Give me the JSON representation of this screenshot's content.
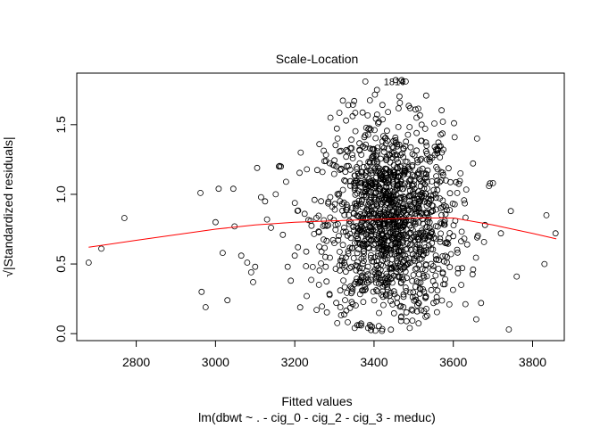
{
  "chart_data": {
    "type": "scatter",
    "title": "Scale-Location",
    "xlabel": "Fitted values",
    "subtitle": "lm(dbwt ~ . - cig_0 - cig_2 - cig_3 - meduc)",
    "ylabel": "√|Standardized residuals|",
    "xlim": [
      2650,
      3880
    ],
    "ylim": [
      -0.05,
      1.87
    ],
    "x_ticks": [
      2800,
      3000,
      3200,
      3400,
      3600,
      3800
    ],
    "y_ticks": [
      0.0,
      0.5,
      1.0,
      1.5
    ],
    "y_tick_labels": [
      "0.0",
      "0.5",
      "1.0",
      "1.5"
    ],
    "annotations": [
      {
        "text": "1810",
        "x": 3452,
        "y": 1.81
      },
      {
        "text": "4",
        "x": 3470,
        "y": 1.81
      }
    ],
    "series": [
      {
        "type": "points",
        "color": "#000000",
        "note_count": 1400,
        "center_x": 3440,
        "sd_x": 80,
        "center_y": 0.8,
        "sd_y": 0.35,
        "points": [
          [
            2680,
            0.51
          ],
          [
            2712,
            0.61
          ],
          [
            2770,
            0.83
          ],
          [
            2962,
            1.01
          ],
          [
            2965,
            0.3
          ],
          [
            2975,
            0.19
          ],
          [
            3000,
            0.8
          ],
          [
            3008,
            1.04
          ],
          [
            3018,
            0.58
          ],
          [
            3030,
            0.24
          ],
          [
            3045,
            1.04
          ],
          [
            3048,
            0.77
          ],
          [
            3065,
            0.56
          ],
          [
            3080,
            0.51
          ],
          [
            3090,
            0.44
          ],
          [
            3095,
            0.37
          ],
          [
            3100,
            0.48
          ],
          [
            3105,
            1.19
          ],
          [
            3115,
            0.98
          ],
          [
            3125,
            0.95
          ],
          [
            3130,
            0.82
          ],
          [
            3140,
            0.76
          ],
          [
            3152,
            1.0
          ],
          [
            3160,
            1.2
          ],
          [
            3165,
            1.2
          ],
          [
            3170,
            0.71
          ],
          [
            3178,
            1.09
          ],
          [
            3182,
            0.48
          ],
          [
            3190,
            0.38
          ],
          [
            3200,
            0.56
          ],
          [
            3208,
            0.62
          ],
          [
            3215,
            1.3
          ],
          [
            3225,
            0.86
          ],
          [
            3230,
            0.27
          ],
          [
            3240,
            0.81
          ],
          [
            3250,
            0.96
          ],
          [
            3255,
            0.17
          ],
          [
            3262,
            1.36
          ],
          [
            3270,
            1.16
          ],
          [
            3278,
            0.48
          ],
          [
            3290,
            1.55
          ],
          [
            3300,
            0.65
          ],
          [
            3308,
            1.4
          ],
          [
            3315,
            0.19
          ],
          [
            3325,
            1.1
          ],
          [
            3335,
            1.64
          ],
          [
            3350,
            1.67
          ],
          [
            3360,
            0.36
          ],
          [
            3378,
            1.81
          ],
          [
            3385,
            0.04
          ],
          [
            3395,
            0.05
          ],
          [
            3412,
            1.52
          ],
          [
            3420,
            0.02
          ],
          [
            3455,
            1.82
          ],
          [
            3470,
            1.82
          ],
          [
            3480,
            1.81
          ],
          [
            3490,
            0.04
          ],
          [
            3510,
            1.23
          ],
          [
            3520,
            1.5
          ],
          [
            3530,
            0.12
          ],
          [
            3550,
            0.22
          ],
          [
            3560,
            0.31
          ],
          [
            3575,
            1.32
          ],
          [
            3590,
            0.21
          ],
          [
            3600,
            0.7
          ],
          [
            3610,
            1.01
          ],
          [
            3620,
            0.35
          ],
          [
            3635,
            0.64
          ],
          [
            3650,
            0.46
          ],
          [
            3660,
            1.4
          ],
          [
            3670,
            0.22
          ],
          [
            3680,
            0.78
          ],
          [
            3690,
            1.06
          ],
          [
            3700,
            1.08
          ],
          [
            3720,
            0.72
          ],
          [
            3740,
            0.03
          ],
          [
            3745,
            0.88
          ],
          [
            3760,
            0.41
          ],
          [
            3830,
            0.5
          ],
          [
            3835,
            0.85
          ],
          [
            3858,
            0.72
          ]
        ]
      },
      {
        "type": "line",
        "name": "",
        "color": "#ff0000",
        "x": [
          2680,
          2800,
          2900,
          3000,
          3100,
          3200,
          3300,
          3400,
          3500,
          3600,
          3700,
          3800,
          3860
        ],
        "y": [
          0.62,
          0.67,
          0.71,
          0.75,
          0.78,
          0.8,
          0.81,
          0.82,
          0.83,
          0.83,
          0.78,
          0.72,
          0.68
        ]
      }
    ]
  }
}
